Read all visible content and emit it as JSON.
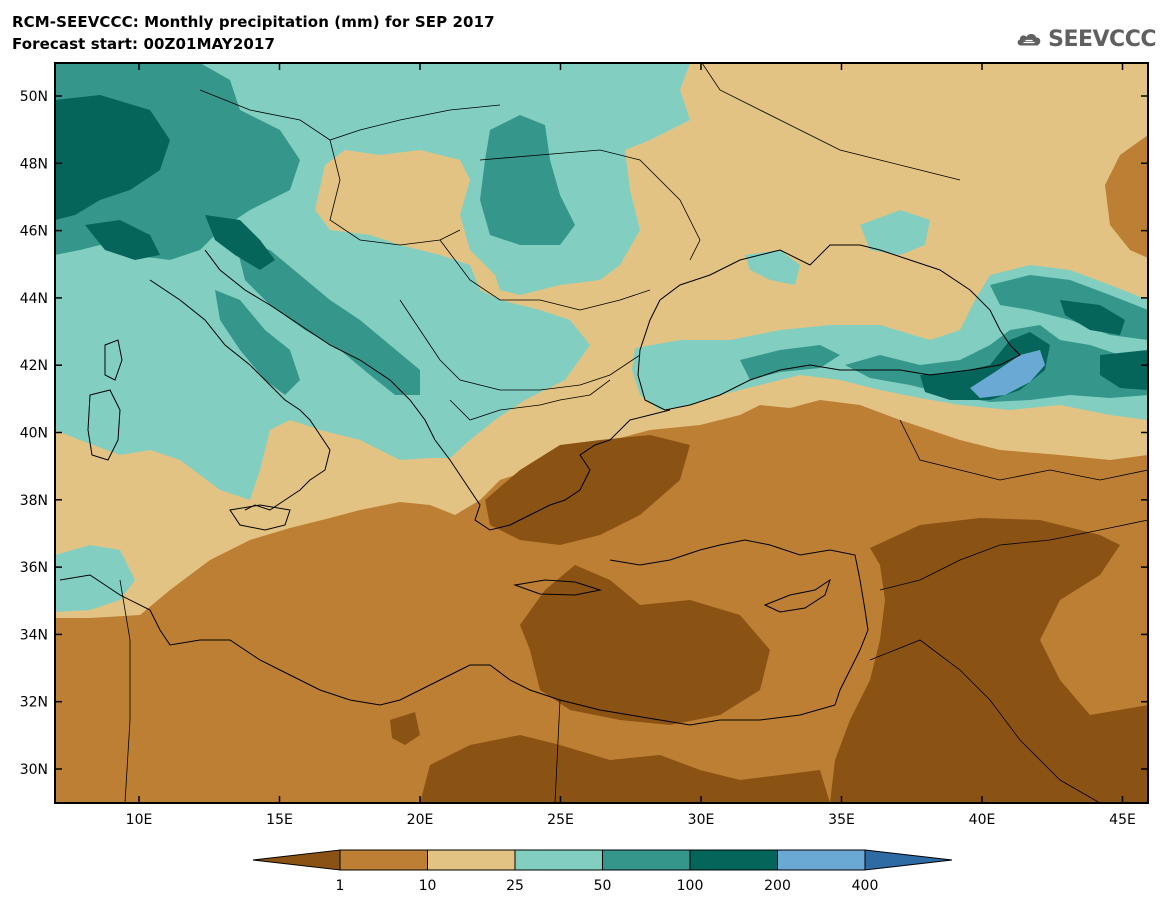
{
  "title": {
    "line1": "RCM-SEEVCCC: Monthly precipitation (mm) for SEP 2017",
    "line2": "Forecast start: 00Z01MAY2017"
  },
  "logo": {
    "text": "SEEVCCC",
    "icon": "cloud-icon"
  },
  "map": {
    "lat_labels": [
      "50N",
      "48N",
      "46N",
      "44N",
      "42N",
      "40N",
      "38N",
      "36N",
      "34N",
      "32N",
      "30N"
    ],
    "lon_labels": [
      "10E",
      "15E",
      "20E",
      "25E",
      "30E",
      "35E",
      "40E",
      "45E"
    ]
  },
  "colorbar": {
    "tick_labels": [
      "1",
      "10",
      "25",
      "50",
      "100",
      "200",
      "400"
    ],
    "colors": [
      "#8a5213",
      "#bd7f33",
      "#e3c383",
      "#82cfc2",
      "#35968b",
      "#05655a",
      "#6aa9d3",
      "#2e6aa4"
    ]
  }
}
